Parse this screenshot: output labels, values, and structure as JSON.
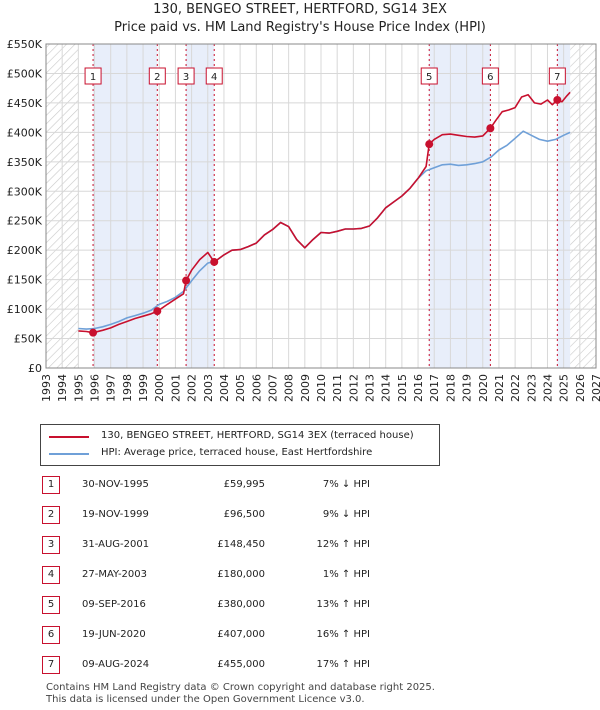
{
  "chart_data": {
    "type": "line",
    "title": "130, BENGEO STREET, HERTFORD, SG14 3EX",
    "subtitle": "Price paid vs. HM Land Registry's House Price Index (HPI)",
    "xlim": [
      1993,
      2027
    ],
    "ylim": [
      0,
      550000
    ],
    "x_ticks": [
      "1993",
      "1994",
      "1995",
      "1996",
      "1997",
      "1998",
      "1999",
      "2000",
      "2001",
      "2002",
      "2003",
      "2004",
      "2005",
      "2006",
      "2007",
      "2008",
      "2009",
      "2010",
      "2011",
      "2012",
      "2013",
      "2014",
      "2015",
      "2016",
      "2017",
      "2018",
      "2019",
      "2020",
      "2021",
      "2022",
      "2023",
      "2024",
      "2025",
      "2026",
      "2027"
    ],
    "y_ticks": [
      {
        "value": 0,
        "label": "£0"
      },
      {
        "value": 50000,
        "label": "£50K"
      },
      {
        "value": 100000,
        "label": "£100K"
      },
      {
        "value": 150000,
        "label": "£150K"
      },
      {
        "value": 200000,
        "label": "£200K"
      },
      {
        "value": 250000,
        "label": "£250K"
      },
      {
        "value": 300000,
        "label": "£300K"
      },
      {
        "value": 350000,
        "label": "£350K"
      },
      {
        "value": 400000,
        "label": "£400K"
      },
      {
        "value": 450000,
        "label": "£450K"
      },
      {
        "value": 500000,
        "label": "£500K"
      },
      {
        "value": 550000,
        "label": "£550K"
      }
    ],
    "data_range": [
      1995.0,
      2025.4
    ],
    "grid": true,
    "legend_position": "below",
    "series": [
      {
        "name": "130, BENGEO STREET, HERTFORD, SG14 3EX (terraced house)",
        "color": "#c8102e",
        "x": [
          1995.0,
          1995.5,
          1995.9,
          1996.5,
          1997.0,
          1997.5,
          1998.0,
          1998.5,
          1999.0,
          1999.5,
          1999.9,
          2000.5,
          2001.0,
          2001.5,
          2001.66,
          2002.0,
          2002.5,
          2003.0,
          2003.4,
          2004.0,
          2004.5,
          2005.0,
          2005.5,
          2006.0,
          2006.5,
          2007.0,
          2007.5,
          2008.0,
          2008.5,
          2009.0,
          2009.5,
          2010.0,
          2010.5,
          2011.0,
          2011.5,
          2012.0,
          2012.5,
          2013.0,
          2013.5,
          2014.0,
          2014.5,
          2015.0,
          2015.5,
          2016.0,
          2016.5,
          2016.69,
          2017.0,
          2017.5,
          2018.0,
          2018.5,
          2019.0,
          2019.5,
          2020.0,
          2020.47,
          2020.8,
          2021.2,
          2021.6,
          2022.0,
          2022.4,
          2022.8,
          2023.2,
          2023.6,
          2024.0,
          2024.3,
          2024.61,
          2024.9,
          2025.2,
          2025.4
        ],
        "y": [
          63000,
          62000,
          59995,
          64000,
          68000,
          74000,
          79000,
          84000,
          88000,
          92000,
          96500,
          108000,
          117000,
          126000,
          148450,
          166000,
          184000,
          196000,
          180000,
          192000,
          200000,
          201000,
          206000,
          212000,
          226000,
          235000,
          247000,
          240000,
          218000,
          204000,
          218000,
          230000,
          229000,
          232000,
          236000,
          236000,
          237000,
          241000,
          255000,
          272000,
          282000,
          292000,
          305000,
          322000,
          342000,
          380000,
          388000,
          396000,
          397000,
          395000,
          393000,
          392000,
          394000,
          407000,
          420000,
          435000,
          438000,
          442000,
          460000,
          464000,
          450000,
          448000,
          455000,
          447000,
          455000,
          452000,
          462000,
          468000
        ]
      },
      {
        "name": "HPI: Average price, terraced house, East Hertfordshire",
        "color": "#6fa0d8",
        "x": [
          1995.0,
          1995.5,
          1996.0,
          1996.5,
          1997.0,
          1997.5,
          1998.0,
          1998.5,
          1999.0,
          1999.5,
          2000.0,
          2000.5,
          2001.0,
          2001.5,
          2002.0,
          2002.5,
          2003.0,
          2003.5,
          2004.0,
          2004.5,
          2005.0,
          2005.5,
          2006.0,
          2006.5,
          2007.0,
          2007.5,
          2008.0,
          2008.5,
          2009.0,
          2009.5,
          2010.0,
          2010.5,
          2011.0,
          2011.5,
          2012.0,
          2012.5,
          2013.0,
          2013.5,
          2014.0,
          2014.5,
          2015.0,
          2015.5,
          2016.0,
          2016.5,
          2017.0,
          2017.5,
          2018.0,
          2018.5,
          2019.0,
          2019.5,
          2020.0,
          2020.5,
          2021.0,
          2021.5,
          2022.0,
          2022.5,
          2023.0,
          2023.5,
          2024.0,
          2024.5,
          2025.0,
          2025.4
        ],
        "y": [
          67000,
          66000,
          67000,
          70000,
          74000,
          79000,
          85000,
          89000,
          93000,
          98000,
          108000,
          113000,
          120000,
          130000,
          148000,
          165000,
          178000,
          182000,
          192000,
          200000,
          201000,
          206000,
          212000,
          226000,
          235000,
          247000,
          240000,
          218000,
          204000,
          218000,
          230000,
          229000,
          232000,
          236000,
          236000,
          237000,
          241000,
          255000,
          272000,
          282000,
          292000,
          305000,
          322000,
          335000,
          340000,
          345000,
          346000,
          344000,
          345000,
          347000,
          350000,
          358000,
          370000,
          378000,
          390000,
          402000,
          395000,
          388000,
          385000,
          388000,
          395000,
          400000
        ]
      }
    ],
    "sale_markers": [
      {
        "label": "1",
        "x": 1995.91,
        "price": 59995
      },
      {
        "label": "2",
        "x": 1999.88,
        "price": 96500
      },
      {
        "label": "3",
        "x": 2001.66,
        "price": 148450
      },
      {
        "label": "4",
        "x": 2003.4,
        "price": 180000
      },
      {
        "label": "5",
        "x": 2016.69,
        "price": 380000
      },
      {
        "label": "6",
        "x": 2020.47,
        "price": 407000
      },
      {
        "label": "7",
        "x": 2024.61,
        "price": 455000
      }
    ],
    "shaded_periods": [
      [
        1995.91,
        1999.88
      ],
      [
        2001.66,
        2003.4
      ],
      [
        2016.69,
        2020.47
      ],
      [
        2024.61,
        2025.4
      ]
    ]
  },
  "colors": {
    "price_line": "#c8102e",
    "hpi_line": "#6fa0d8",
    "shade": "#e8eefa",
    "hatch": "#c8c8c8",
    "grid": "#d8d8d8"
  },
  "legend": {
    "price_label": "130, BENGEO STREET, HERTFORD, SG14 3EX (terraced house)",
    "hpi_label": "HPI: Average price, terraced house, East Hertfordshire"
  },
  "sales": [
    {
      "num": "1",
      "date": "30-NOV-1995",
      "price": "£59,995",
      "hpi": "7% ↓ HPI"
    },
    {
      "num": "2",
      "date": "19-NOV-1999",
      "price": "£96,500",
      "hpi": "9% ↓ HPI"
    },
    {
      "num": "3",
      "date": "31-AUG-2001",
      "price": "£148,450",
      "hpi": "12% ↑ HPI"
    },
    {
      "num": "4",
      "date": "27-MAY-2003",
      "price": "£180,000",
      "hpi": "1% ↑ HPI"
    },
    {
      "num": "5",
      "date": "09-SEP-2016",
      "price": "£380,000",
      "hpi": "13% ↑ HPI"
    },
    {
      "num": "6",
      "date": "19-JUN-2020",
      "price": "£407,000",
      "hpi": "16% ↑ HPI"
    },
    {
      "num": "7",
      "date": "09-AUG-2024",
      "price": "£455,000",
      "hpi": "17% ↑ HPI"
    }
  ],
  "footer": {
    "line1": "Contains HM Land Registry data © Crown copyright and database right 2025.",
    "line2": "This data is licensed under the Open Government Licence v3.0."
  }
}
